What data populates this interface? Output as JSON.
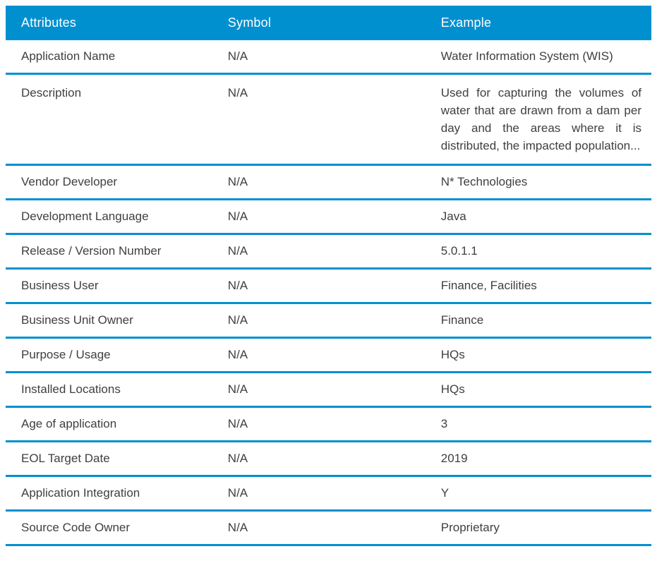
{
  "table": {
    "columns": [
      "Attributes",
      "Symbol",
      "Example"
    ],
    "rows": [
      {
        "attribute": "Application Name",
        "symbol": "N/A",
        "example": "Water Information System (WIS)"
      },
      {
        "attribute": "Description",
        "symbol": "N/A",
        "example": "Used for capturing the volumes of water that are drawn from a dam per day and the areas where it is distributed, the impacted population..."
      },
      {
        "attribute": "Vendor Developer",
        "symbol": "N/A",
        "example": "N* Technologies"
      },
      {
        "attribute": "Development Language",
        "symbol": "N/A",
        "example": "Java"
      },
      {
        "attribute": "Release / Version Number",
        "symbol": "N/A",
        "example": "5.0.1.1"
      },
      {
        "attribute": "Business User",
        "symbol": "N/A",
        "example": "Finance, Facilities"
      },
      {
        "attribute": "Business Unit Owner",
        "symbol": "N/A",
        "example": "Finance"
      },
      {
        "attribute": "Purpose / Usage",
        "symbol": "N/A",
        "example": "HQs"
      },
      {
        "attribute": "Installed Locations",
        "symbol": "N/A",
        "example": "HQs"
      },
      {
        "attribute": "Age of application",
        "symbol": "N/A",
        "example": "3"
      },
      {
        "attribute": "EOL Target Date",
        "symbol": "N/A",
        "example": "2019"
      },
      {
        "attribute": "Application Integration",
        "symbol": "N/A",
        "example": "Y"
      },
      {
        "attribute": "Source Code Owner",
        "symbol": "N/A",
        "example": "Proprietary"
      }
    ],
    "colors": {
      "accent": "#0090D0",
      "header_text": "#FFFFFF",
      "body_text": "#3F3F3F",
      "page_bg": "#FFFFFF"
    }
  }
}
